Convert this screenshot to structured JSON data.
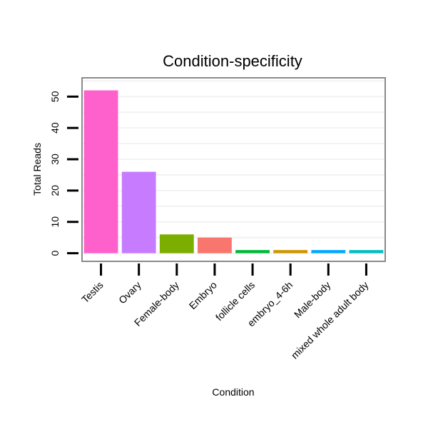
{
  "chart_data": {
    "type": "bar",
    "title": "Condition-specificity",
    "xlabel": "Condition",
    "ylabel": "Total Reads",
    "categories": [
      "Testis",
      "Ovary",
      "Female-body",
      "Embryo",
      "follicle cells",
      "embryo_4-6h",
      "Male-body",
      "mixed whole adult body"
    ],
    "values": [
      52,
      26,
      6,
      5,
      1,
      1,
      1,
      1
    ],
    "colors": [
      "#FF61CC",
      "#C77CFF",
      "#7CAE00",
      "#F8766D",
      "#00BA38",
      "#CD9600",
      "#00A9FF",
      "#00BFC4"
    ],
    "yticks": [
      0,
      10,
      20,
      30,
      40,
      50
    ],
    "ylim": [
      -2.6,
      56
    ],
    "grid": true,
    "legend": "none"
  }
}
